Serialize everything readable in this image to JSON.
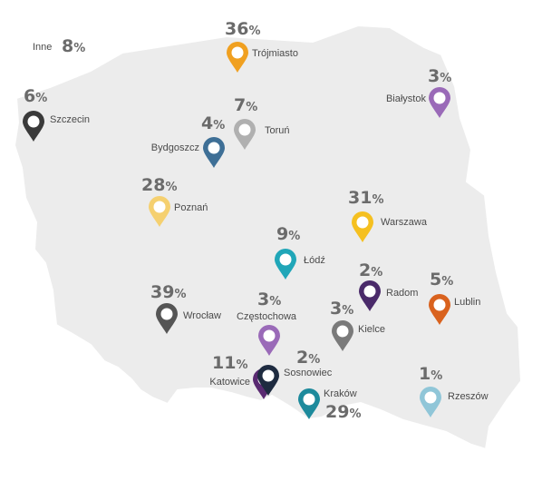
{
  "map": {
    "country_fill": "#ececec",
    "country_stroke": "#ffffff"
  },
  "other": {
    "label": "Inne",
    "value": "8",
    "unit": "%"
  },
  "cities": [
    {
      "id": "trojmiasto",
      "name": "Trójmiasto",
      "value": "36",
      "unit": "%",
      "color": "#f0a020",
      "icon": "map-pin-icon"
    },
    {
      "id": "bialystok",
      "name": "Białystok",
      "value": "3",
      "unit": "%",
      "color": "#9a6ab8",
      "icon": "map-pin-icon"
    },
    {
      "id": "szczecin",
      "name": "Szczecin",
      "value": "6",
      "unit": "%",
      "color": "#3a3a3a",
      "icon": "map-pin-icon"
    },
    {
      "id": "torun",
      "name": "Toruń",
      "value": "7",
      "unit": "%",
      "color": "#b0b0b0",
      "icon": "map-pin-icon"
    },
    {
      "id": "bydgoszcz",
      "name": "Bydgoszcz",
      "value": "4",
      "unit": "%",
      "color": "#3e6f96",
      "icon": "map-pin-icon"
    },
    {
      "id": "poznan",
      "name": "Poznań",
      "value": "28",
      "unit": "%",
      "color": "#f5d070",
      "icon": "map-pin-icon"
    },
    {
      "id": "warszawa",
      "name": "Warszawa",
      "value": "31",
      "unit": "%",
      "color": "#f5c020",
      "icon": "map-pin-icon"
    },
    {
      "id": "lodz",
      "name": "Łódź",
      "value": "9",
      "unit": "%",
      "color": "#20a6b8",
      "icon": "map-pin-icon"
    },
    {
      "id": "radom",
      "name": "Radom",
      "value": "2",
      "unit": "%",
      "color": "#4a2a6a",
      "icon": "map-pin-icon"
    },
    {
      "id": "lublin",
      "name": "Lublin",
      "value": "5",
      "unit": "%",
      "color": "#d9621e",
      "icon": "map-pin-icon"
    },
    {
      "id": "wroclaw",
      "name": "Wrocław",
      "value": "39",
      "unit": "%",
      "color": "#555555",
      "icon": "map-pin-icon"
    },
    {
      "id": "czestochowa",
      "name": "Częstochowa",
      "value": "3",
      "unit": "%",
      "color": "#9a6ab8",
      "icon": "map-pin-icon"
    },
    {
      "id": "kielce",
      "name": "Kielce",
      "value": "3",
      "unit": "%",
      "color": "#7a7a7a",
      "icon": "map-pin-icon"
    },
    {
      "id": "katowice",
      "name": "Katowice",
      "value": "11",
      "unit": "%",
      "color": "#5a2a72",
      "icon": "map-pin-icon"
    },
    {
      "id": "sosnowiec",
      "name": "Sosnowiec",
      "value": "2",
      "unit": "%",
      "color": "#1e2b40",
      "icon": "map-pin-icon"
    },
    {
      "id": "krakow",
      "name": "Kraków",
      "value": "29",
      "unit": "%",
      "color": "#1d8a9c",
      "icon": "map-pin-icon"
    },
    {
      "id": "rzeszow",
      "name": "Rzeszów",
      "value": "1",
      "unit": "%",
      "color": "#90c6d8",
      "icon": "map-pin-icon"
    }
  ]
}
